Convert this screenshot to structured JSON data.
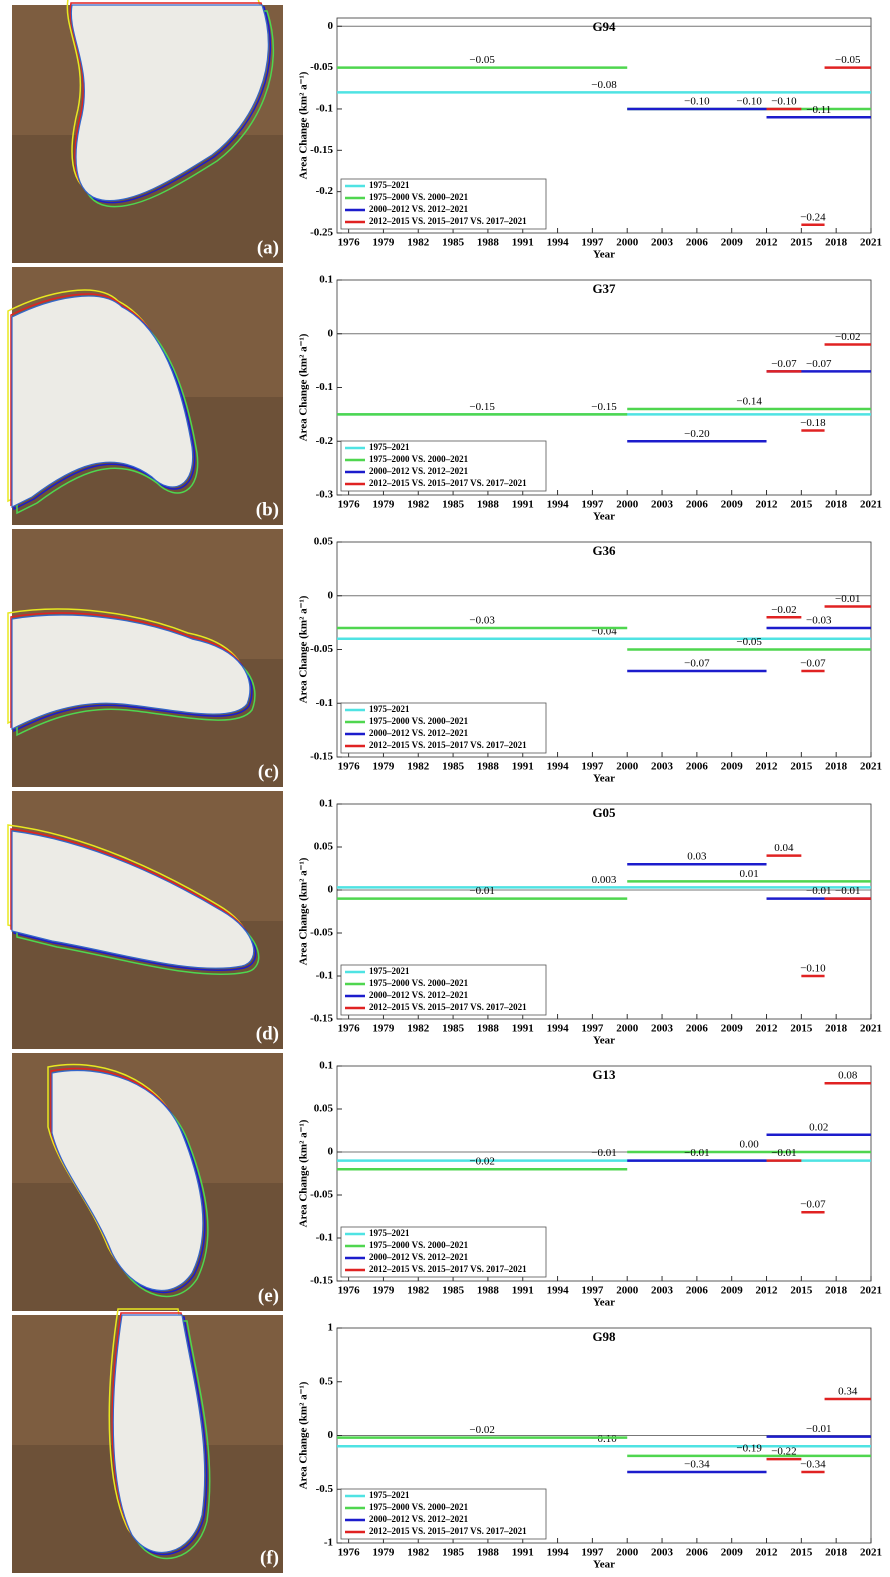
{
  "image_labels": [
    "(a)",
    "(b)",
    "(c)",
    "(d)",
    "(e)",
    "(f)"
  ],
  "chart_data": [
    {
      "type": "step",
      "title": "G94",
      "x_label": "Year",
      "y_label": "Area Change (km² a⁻¹)",
      "xlim": [
        1975,
        2021
      ],
      "xticks": [
        1976,
        1979,
        1982,
        1985,
        1988,
        1991,
        1994,
        1997,
        2000,
        2003,
        2006,
        2009,
        2012,
        2015,
        2018,
        2021
      ],
      "ylim": [
        -0.25,
        0.01
      ],
      "yticks": [
        0,
        -0.05,
        -0.1,
        -0.15,
        -0.2,
        -0.25
      ],
      "legend": "lower left",
      "series": [
        {
          "name": "1975–2021",
          "color": "#4fe3e3",
          "x_start": [
            1975
          ],
          "x_end": [
            2021
          ],
          "values": [
            -0.08
          ],
          "value_labels": [
            "−0.08"
          ]
        },
        {
          "name": "1975–2000 VS. 2000–2021",
          "color": "#4fd64f",
          "x_start": [
            1975,
            2000
          ],
          "x_end": [
            2000,
            2021
          ],
          "values": [
            -0.05,
            -0.1
          ],
          "value_labels": [
            "−0.05",
            "−0.10"
          ]
        },
        {
          "name": "2000–2012 VS. 2012–2021",
          "color": "#1c1ccc",
          "x_start": [
            2000,
            2012
          ],
          "x_end": [
            2012,
            2021
          ],
          "values": [
            -0.1,
            -0.11
          ],
          "value_labels": [
            "−0.10",
            "−0.11"
          ]
        },
        {
          "name": "2012–2015 VS. 2015–2017 VS. 2017–2021",
          "color": "#e02222",
          "x_start": [
            2012,
            2015,
            2017
          ],
          "x_end": [
            2015,
            2017,
            2021
          ],
          "values": [
            -0.1,
            -0.24,
            -0.05
          ],
          "value_labels": [
            "−0.10",
            "−0.24",
            "−0.05"
          ]
        }
      ]
    },
    {
      "type": "step",
      "title": "G37",
      "x_label": "Year",
      "y_label": "Area Change (km² a⁻¹)",
      "xlim": [
        1975,
        2021
      ],
      "xticks": [
        1976,
        1979,
        1982,
        1985,
        1988,
        1991,
        1994,
        1997,
        2000,
        2003,
        2006,
        2009,
        2012,
        2015,
        2018,
        2021
      ],
      "ylim": [
        -0.3,
        0.1
      ],
      "yticks": [
        0.1,
        0,
        -0.1,
        -0.2,
        -0.3
      ],
      "legend": "lower left",
      "series": [
        {
          "name": "1975–2021",
          "color": "#4fe3e3",
          "x_start": [
            1975
          ],
          "x_end": [
            2021
          ],
          "values": [
            -0.15
          ],
          "value_labels": [
            "−0.15"
          ]
        },
        {
          "name": "1975–2000 VS. 2000–2021",
          "color": "#4fd64f",
          "x_start": [
            1975,
            2000
          ],
          "x_end": [
            2000,
            2021
          ],
          "values": [
            -0.15,
            -0.14
          ],
          "value_labels": [
            "−0.15",
            "−0.14"
          ]
        },
        {
          "name": "2000–2012 VS. 2012–2021",
          "color": "#1c1ccc",
          "x_start": [
            2000,
            2012
          ],
          "x_end": [
            2012,
            2021
          ],
          "values": [
            -0.2,
            -0.07
          ],
          "value_labels": [
            "−0.20",
            "−0.07"
          ]
        },
        {
          "name": "2012–2015 VS. 2015–2017 VS. 2017–2021",
          "color": "#e02222",
          "x_start": [
            2012,
            2015,
            2017
          ],
          "x_end": [
            2015,
            2017,
            2021
          ],
          "values": [
            -0.07,
            -0.18,
            -0.02
          ],
          "value_labels": [
            "−0.07",
            "−0.18",
            "−0.02"
          ]
        }
      ]
    },
    {
      "type": "step",
      "title": "G36",
      "x_label": "Year",
      "y_label": "Area Change (km² a⁻¹)",
      "xlim": [
        1975,
        2021
      ],
      "xticks": [
        1976,
        1979,
        1982,
        1985,
        1988,
        1991,
        1994,
        1997,
        2000,
        2003,
        2006,
        2009,
        2012,
        2015,
        2018,
        2021
      ],
      "ylim": [
        -0.15,
        0.05
      ],
      "yticks": [
        0.05,
        0,
        -0.05,
        -0.1,
        -0.15
      ],
      "legend": "lower left",
      "series": [
        {
          "name": "1975–2021",
          "color": "#4fe3e3",
          "x_start": [
            1975
          ],
          "x_end": [
            2021
          ],
          "values": [
            -0.04
          ],
          "value_labels": [
            "−0.04"
          ]
        },
        {
          "name": "1975–2000 VS. 2000–2021",
          "color": "#4fd64f",
          "x_start": [
            1975,
            2000
          ],
          "x_end": [
            2000,
            2021
          ],
          "values": [
            -0.03,
            -0.05
          ],
          "value_labels": [
            "−0.03",
            "−0.05"
          ]
        },
        {
          "name": "2000–2012 VS. 2012–2021",
          "color": "#1c1ccc",
          "x_start": [
            2000,
            2012
          ],
          "x_end": [
            2012,
            2021
          ],
          "values": [
            -0.07,
            -0.03
          ],
          "value_labels": [
            "−0.07",
            "−0.03"
          ]
        },
        {
          "name": "2012–2015 VS. 2015–2017 VS. 2017–2021",
          "color": "#e02222",
          "x_start": [
            2012,
            2015,
            2017
          ],
          "x_end": [
            2015,
            2017,
            2021
          ],
          "values": [
            -0.02,
            -0.07,
            -0.01
          ],
          "value_labels": [
            "−0.02",
            "−0.07",
            "−0.01"
          ]
        }
      ]
    },
    {
      "type": "step",
      "title": "G05",
      "x_label": "Year",
      "y_label": "Area Change (km² a⁻¹)",
      "xlim": [
        1975,
        2021
      ],
      "xticks": [
        1976,
        1979,
        1982,
        1985,
        1988,
        1991,
        1994,
        1997,
        2000,
        2003,
        2006,
        2009,
        2012,
        2015,
        2018,
        2021
      ],
      "ylim": [
        -0.15,
        0.1
      ],
      "yticks": [
        0.1,
        0.05,
        0,
        -0.05,
        -0.1,
        -0.15
      ],
      "legend": "lower left",
      "series": [
        {
          "name": "1975–2021",
          "color": "#4fe3e3",
          "x_start": [
            1975
          ],
          "x_end": [
            2021
          ],
          "values": [
            0.003
          ],
          "value_labels": [
            "0.003"
          ]
        },
        {
          "name": "1975–2000 VS. 2000–2021",
          "color": "#4fd64f",
          "x_start": [
            1975,
            2000
          ],
          "x_end": [
            2000,
            2021
          ],
          "values": [
            -0.01,
            0.01
          ],
          "value_labels": [
            "−0.01",
            "0.01"
          ]
        },
        {
          "name": "2000–2012 VS. 2012–2021",
          "color": "#1c1ccc",
          "x_start": [
            2000,
            2012
          ],
          "x_end": [
            2012,
            2021
          ],
          "values": [
            0.03,
            -0.01
          ],
          "value_labels": [
            "0.03",
            "−0.01"
          ]
        },
        {
          "name": "2012–2015 VS. 2015–2017 VS. 2017–2021",
          "color": "#e02222",
          "x_start": [
            2012,
            2015,
            2017
          ],
          "x_end": [
            2015,
            2017,
            2021
          ],
          "values": [
            0.04,
            -0.1,
            -0.01
          ],
          "value_labels": [
            "0.04",
            "−0.10",
            "−0.01"
          ]
        }
      ]
    },
    {
      "type": "step",
      "title": "G13",
      "x_label": "Year",
      "y_label": "Area Change (km² a⁻¹)",
      "xlim": [
        1975,
        2021
      ],
      "xticks": [
        1976,
        1979,
        1982,
        1985,
        1988,
        1991,
        1994,
        1997,
        2000,
        2003,
        2006,
        2009,
        2012,
        2015,
        2018,
        2021
      ],
      "ylim": [
        -0.15,
        0.1
      ],
      "yticks": [
        0.1,
        0.05,
        0,
        -0.05,
        -0.1,
        -0.15
      ],
      "legend": "lower left",
      "series": [
        {
          "name": "1975–2021",
          "color": "#4fe3e3",
          "x_start": [
            1975
          ],
          "x_end": [
            2021
          ],
          "values": [
            -0.01
          ],
          "value_labels": [
            "−0.01"
          ]
        },
        {
          "name": "1975–2000 VS. 2000–2021",
          "color": "#4fd64f",
          "x_start": [
            1975,
            2000
          ],
          "x_end": [
            2000,
            2021
          ],
          "values": [
            -0.02,
            0
          ],
          "value_labels": [
            "−0.02",
            "0.00"
          ]
        },
        {
          "name": "2000–2012 VS. 2012–2021",
          "color": "#1c1ccc",
          "x_start": [
            2000,
            2012
          ],
          "x_end": [
            2012,
            2021
          ],
          "values": [
            -0.01,
            0.02
          ],
          "value_labels": [
            "−0.01",
            "0.02"
          ]
        },
        {
          "name": "2012–2015 VS. 2015–2017 VS. 2017–2021",
          "color": "#e02222",
          "x_start": [
            2012,
            2015,
            2017
          ],
          "x_end": [
            2015,
            2017,
            2021
          ],
          "values": [
            -0.01,
            -0.07,
            0.08
          ],
          "value_labels": [
            "−0.01",
            "−0.07",
            "0.08"
          ]
        }
      ]
    },
    {
      "type": "step",
      "title": "G98",
      "x_label": "Year",
      "y_label": "Area Change (km² a⁻¹)",
      "xlim": [
        1975,
        2021
      ],
      "xticks": [
        1976,
        1979,
        1982,
        1985,
        1988,
        1991,
        1994,
        1997,
        2000,
        2003,
        2006,
        2009,
        2012,
        2015,
        2018,
        2021
      ],
      "ylim": [
        -1,
        1
      ],
      "yticks": [
        1,
        0.5,
        0,
        -0.5,
        -1
      ],
      "legend": "lower left",
      "series": [
        {
          "name": "1975–2021",
          "color": "#4fe3e3",
          "x_start": [
            1975
          ],
          "x_end": [
            2021
          ],
          "values": [
            -0.1
          ],
          "value_labels": [
            "−0.10"
          ]
        },
        {
          "name": "1975–2000 VS. 2000–2021",
          "color": "#4fd64f",
          "x_start": [
            1975,
            2000
          ],
          "x_end": [
            2000,
            2021
          ],
          "values": [
            -0.02,
            -0.19
          ],
          "value_labels": [
            "−0.02",
            "−0.19"
          ]
        },
        {
          "name": "2000–2012 VS. 2012–2021",
          "color": "#1c1ccc",
          "x_start": [
            2000,
            2012
          ],
          "x_end": [
            2012,
            2021
          ],
          "values": [
            -0.34,
            -0.01
          ],
          "value_labels": [
            "−0.34",
            "−0.01"
          ]
        },
        {
          "name": "2012–2015 VS. 2015–2017 VS. 2017–2021",
          "color": "#e02222",
          "x_start": [
            2012,
            2015,
            2017
          ],
          "x_end": [
            2015,
            2017,
            2021
          ],
          "values": [
            -0.22,
            -0.34,
            0.34
          ],
          "value_labels": [
            "−0.22",
            "−0.34",
            "0.34"
          ]
        }
      ]
    }
  ]
}
